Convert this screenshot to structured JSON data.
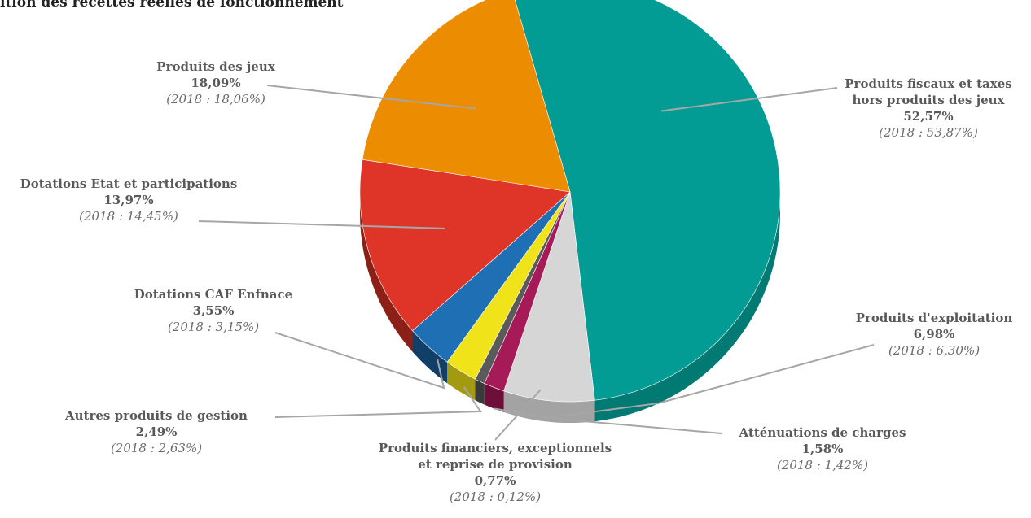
{
  "chart_data": {
    "type": "pie",
    "title": "ition des recettes réelles de fonctionnement",
    "slices": [
      {
        "name": "Produits fiscaux et taxes hors produits des jeux",
        "name_lines": [
          "Produits fiscaux et taxes",
          "hors produits des jeux"
        ],
        "value": 52.57,
        "value_label": "52,57%",
        "previous_label": "(2018 : 53,87%)",
        "color": "#029c94",
        "side_color": "#017a73"
      },
      {
        "name": "Produits d'exploitation",
        "name_lines": [
          "Produits d'exploitation"
        ],
        "value": 6.98,
        "value_label": "6,98%",
        "previous_label": "(2018 : 6,30%)",
        "color": "#d6d6d6",
        "side_color": "#a3a3a3"
      },
      {
        "name": "Atténuations de charges",
        "name_lines": [
          "Atténuations de charges"
        ],
        "value": 1.58,
        "value_label": "1,58%",
        "previous_label": "(2018 : 1,42%)",
        "color": "#a51a57",
        "side_color": "#6d0f38"
      },
      {
        "name": "Produits financiers, exceptionnels et reprise de provision",
        "name_lines": [
          "Produits financiers, exceptionnels",
          "et reprise de provision"
        ],
        "value": 0.77,
        "value_label": "0,77%",
        "previous_label": "(2018 : 0,12%)",
        "color": "#5a5a5a",
        "side_color": "#3a3a3a"
      },
      {
        "name": "Autres produits de gestion",
        "name_lines": [
          "Autres produits de gestion"
        ],
        "value": 2.49,
        "value_label": "2,49%",
        "previous_label": "(2018 : 2,63%)",
        "color": "#f1e31a",
        "side_color": "#a39a12"
      },
      {
        "name": "Dotations CAF Enfnace",
        "name_lines": [
          "Dotations CAF Enfnace"
        ],
        "value": 3.55,
        "value_label": "3,55%",
        "previous_label": "(2018 : 3,15%)",
        "color": "#1f6fb4",
        "side_color": "#123f67"
      },
      {
        "name": "Dotations Etat et participations",
        "name_lines": [
          "Dotations Etat et participations"
        ],
        "value": 13.97,
        "value_label": "13,97%",
        "previous_label": "(2018 : 14,45%)",
        "color": "#df3529",
        "side_color": "#8c2016"
      },
      {
        "name": "Produits des jeux",
        "name_lines": [
          "Produits des jeux"
        ],
        "value": 18.09,
        "value_label": "18,09%",
        "previous_label": "(2018 : 18,06%)",
        "color": "#ec8c00",
        "side_color": "#955800"
      }
    ],
    "legend": "none",
    "label_style": "callout-lines"
  }
}
